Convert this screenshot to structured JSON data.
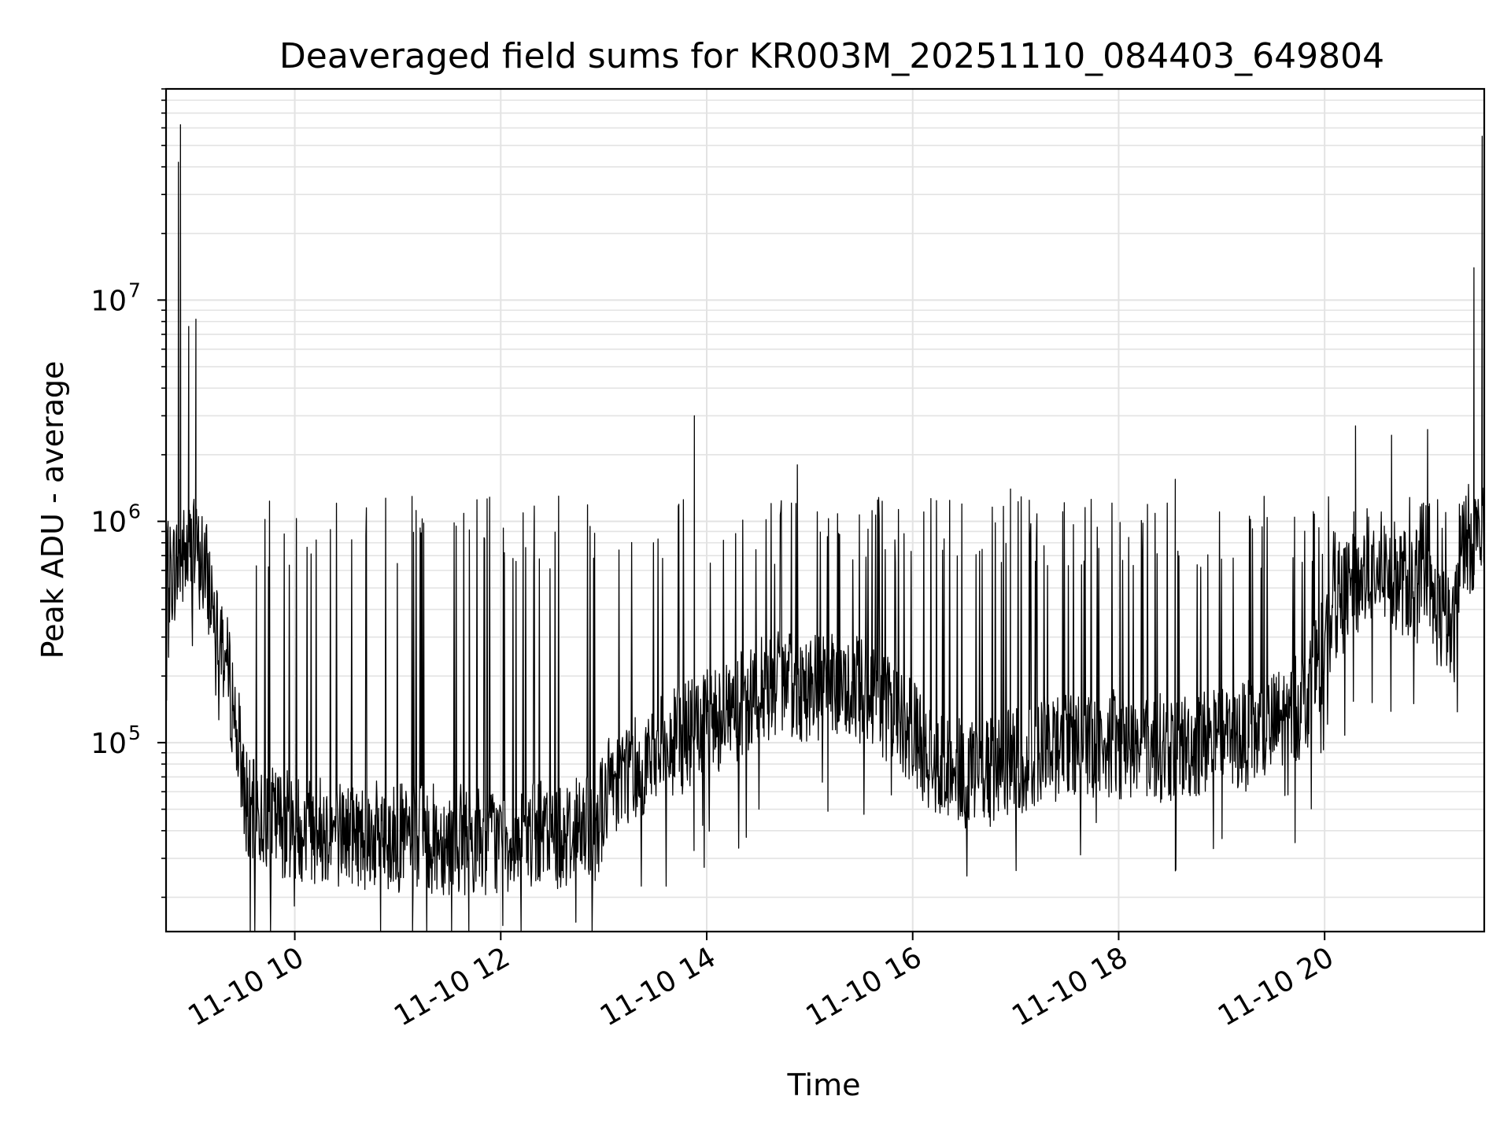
{
  "chart_data": {
    "type": "line",
    "title": "Deaveraged field sums for KR003M_20251110_084403_649804",
    "xlabel": "Time",
    "ylabel": "Peak ADU - average",
    "yscale": "log",
    "ylim": [
      14000,
      90000000
    ],
    "xlim_hours": [
      8.75,
      21.55
    ],
    "grid": true,
    "x_ticks": [
      {
        "hour": 10,
        "label": "11-10 10"
      },
      {
        "hour": 12,
        "label": "11-10 12"
      },
      {
        "hour": 14,
        "label": "11-10 14"
      },
      {
        "hour": 16,
        "label": "11-10 16"
      },
      {
        "hour": 18,
        "label": "11-10 18"
      },
      {
        "hour": 20,
        "label": "11-10 20"
      }
    ],
    "y_ticks": [
      {
        "value": 100000,
        "base": "10",
        "exp": "5"
      },
      {
        "value": 1000000,
        "base": "10",
        "exp": "6"
      },
      {
        "value": 10000000,
        "base": "10",
        "exp": "7"
      }
    ],
    "baseline": [
      [
        8.75,
        550000
      ],
      [
        9.0,
        750000
      ],
      [
        9.1,
        650000
      ],
      [
        9.25,
        380000
      ],
      [
        9.4,
        150000
      ],
      [
        9.55,
        48000
      ],
      [
        10.0,
        42000
      ],
      [
        11.0,
        37000
      ],
      [
        12.0,
        36000
      ],
      [
        12.9,
        40000
      ],
      [
        13.1,
        70000
      ],
      [
        14.0,
        120000
      ],
      [
        14.6,
        180000
      ],
      [
        15.6,
        170000
      ],
      [
        16.2,
        85000
      ],
      [
        16.6,
        70000
      ],
      [
        17.5,
        100000
      ],
      [
        18.5,
        95000
      ],
      [
        19.4,
        110000
      ],
      [
        19.8,
        150000
      ],
      [
        20.1,
        400000
      ],
      [
        20.5,
        650000
      ],
      [
        21.0,
        450000
      ],
      [
        21.25,
        300000
      ],
      [
        21.35,
        850000
      ],
      [
        21.55,
        800000
      ]
    ],
    "spikes": [
      [
        8.87,
        42000000
      ],
      [
        8.89,
        62000000
      ],
      [
        8.97,
        7600000
      ],
      [
        9.04,
        8200000
      ],
      [
        13.88,
        3000000
      ],
      [
        14.88,
        1800000
      ],
      [
        16.95,
        1400000
      ],
      [
        18.55,
        1550000
      ],
      [
        20.3,
        2700000
      ],
      [
        20.65,
        2450000
      ],
      [
        21.0,
        2600000
      ],
      [
        21.45,
        14000000
      ],
      [
        21.53,
        55000000
      ]
    ],
    "noise": {
      "points": 2600,
      "seed": 7
    }
  }
}
